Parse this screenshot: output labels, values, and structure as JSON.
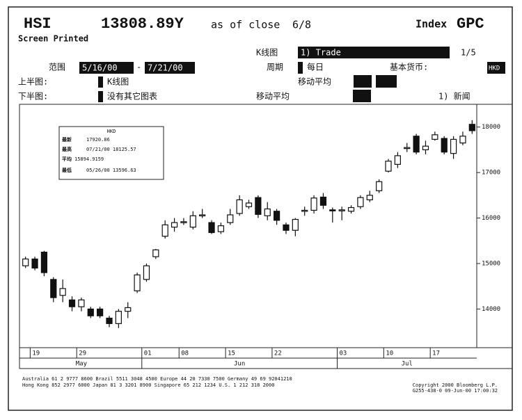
{
  "header": {
    "ticker": "HSI",
    "price": "13808.89Y",
    "as_of": "as of close",
    "date": "6/8",
    "index_label": "Index",
    "function": "GPC",
    "status": "Screen Printed"
  },
  "controls": {
    "chart_type_label": "K线图",
    "chart_type_value": "1) Trade",
    "page": "1/5",
    "range_label": "范围",
    "range_from": "5/16/00",
    "range_sep": "-",
    "range_to": "7/21/00",
    "period_label": "周期",
    "period_value": "每日",
    "currency_label": "基本货币:",
    "currency_value": "HKD",
    "upper_label": "上半图:",
    "upper_value": "K线图",
    "upper_ma": "移动平均",
    "lower_label": "下半图:",
    "lower_value": "没有其它图表",
    "lower_ma": "移动平均",
    "news": "1) 新闻"
  },
  "info_box": {
    "title": "HKD",
    "rows": [
      [
        "最新",
        "17920.86"
      ],
      [
        "最高",
        "07/21/00 18125.57"
      ],
      [
        "平均",
        "15894.9159"
      ],
      [
        "最低",
        "05/26/00 13596.63"
      ]
    ]
  },
  "chart_data": {
    "type": "candlestick",
    "categories": [
      null,
      "19",
      null,
      null,
      null,
      null,
      "29",
      null,
      null,
      null,
      null,
      null,
      null,
      "01",
      null,
      null,
      null,
      "08",
      null,
      null,
      null,
      null,
      "15",
      null,
      null,
      null,
      null,
      "22",
      null,
      null,
      null,
      null,
      null,
      null,
      "03",
      null,
      null,
      null,
      null,
      "10",
      null,
      null,
      null,
      null,
      "17",
      null,
      null,
      null,
      null
    ],
    "months": [
      "May",
      "Jun",
      "Jul"
    ],
    "open": [
      14950,
      15100,
      15250,
      14650,
      14300,
      14200,
      14050,
      14000,
      14000,
      13800,
      13680,
      13950,
      14400,
      14650,
      15150,
      15600,
      15800,
      15900,
      15800,
      16060,
      15900,
      15700,
      15900,
      16100,
      16250,
      16450,
      16050,
      16150,
      15850,
      15730,
      16150,
      16170,
      16460,
      16180,
      16160,
      16150,
      16250,
      16400,
      16600,
      17030,
      17180,
      17530,
      17800,
      17500,
      17730,
      17750,
      17420,
      17650,
      18060
    ],
    "high": [
      15150,
      15150,
      15280,
      14700,
      14650,
      14280,
      14250,
      14050,
      14050,
      13850,
      14000,
      14150,
      14800,
      15000,
      15320,
      15950,
      16000,
      16000,
      16150,
      16200,
      15950,
      15900,
      16200,
      16500,
      16400,
      16500,
      16350,
      16200,
      15900,
      16000,
      16250,
      16500,
      16550,
      16230,
      16250,
      16280,
      16500,
      16600,
      16850,
      17300,
      17450,
      17650,
      17850,
      17700,
      17900,
      17800,
      17800,
      17900,
      18150
    ],
    "low": [
      14900,
      14850,
      14720,
      14150,
      14150,
      13950,
      13950,
      13800,
      13800,
      13600,
      13580,
      13800,
      14350,
      14600,
      15100,
      15550,
      15700,
      15850,
      15750,
      16000,
      15650,
      15650,
      15850,
      16050,
      16200,
      16000,
      15950,
      15850,
      15650,
      15600,
      16050,
      16100,
      16200,
      15900,
      15950,
      16100,
      16200,
      16350,
      16550,
      17000,
      17100,
      17450,
      17400,
      17400,
      17700,
      17400,
      17300,
      17600,
      17850
    ],
    "close": [
      15100,
      14900,
      14800,
      14250,
      14450,
      14050,
      14200,
      13850,
      13850,
      13680,
      13950,
      14030,
      14750,
      14950,
      15300,
      15850,
      15900,
      15920,
      16050,
      16070,
      15680,
      15830,
      16070,
      16400,
      16330,
      16080,
      16200,
      15950,
      15730,
      15970,
      16170,
      16440,
      16280,
      16170,
      16180,
      16230,
      16450,
      16500,
      16800,
      17250,
      17370,
      17550,
      17450,
      17580,
      17830,
      17450,
      17730,
      17800,
      17920
    ],
    "ylim": [
      13150,
      18500
    ],
    "yticks": [
      14000,
      15000,
      16000,
      17000,
      18000
    ]
  },
  "footer": {
    "lines": [
      "Australia 61 2 9777 8600   Brazil 5511 3048 4500   Europe 44 20 7330 7500   Germany 49 69 92041210",
      "Hong Kong 852 2977 6000   Japan 81 3 3201 8900   Singapore 65 212 1234   U.S. 1 212 318 2000",
      "Copyright 2000 Bloomberg L.P.",
      "G255-438-0 09-Jun-00 17:00:32"
    ]
  }
}
